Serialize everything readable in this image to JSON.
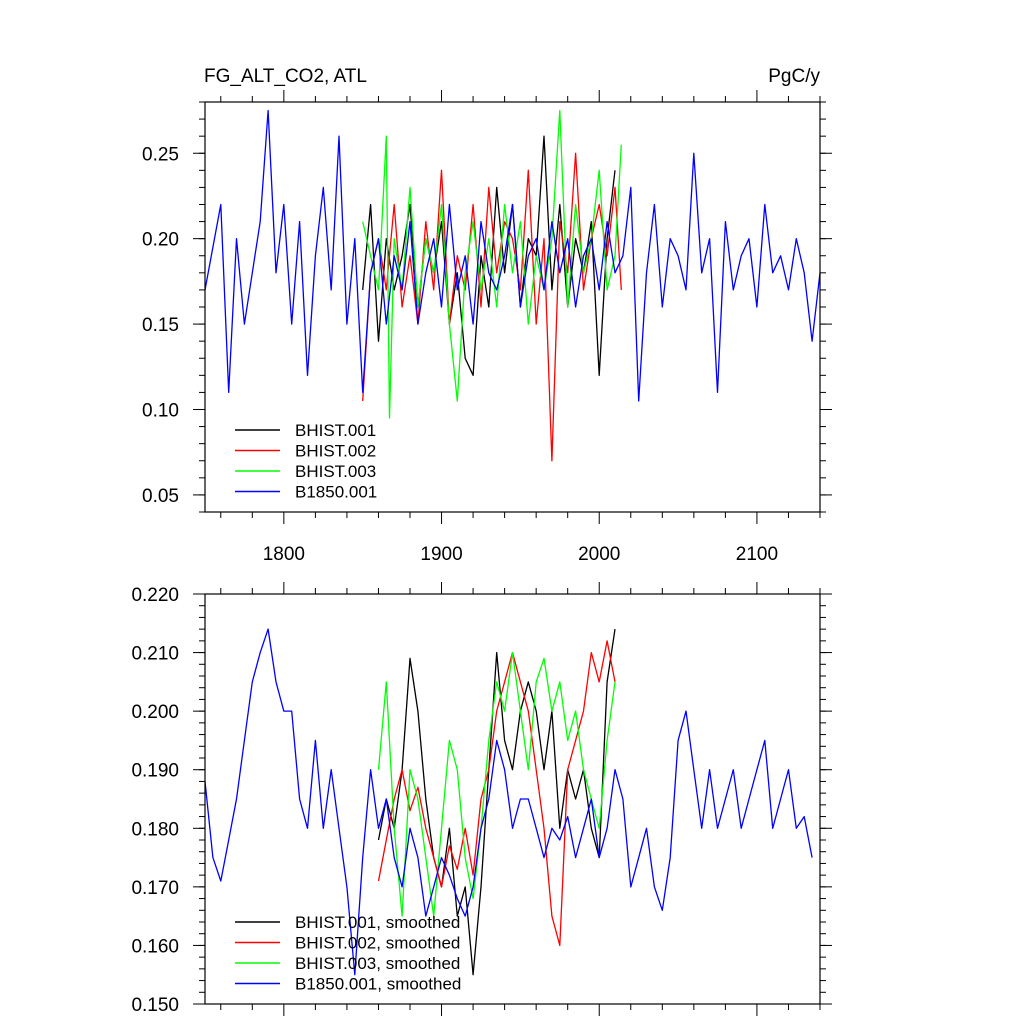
{
  "colors": {
    "bhist001": "#000000",
    "bhist002": "#ff0000",
    "bhist003": "#00ff00",
    "b1850": "#0000ff"
  },
  "chart_data": [
    {
      "type": "line",
      "title": "FG_ALT_CO2, ATL",
      "units": "PgC/y",
      "xlim": [
        1750,
        2140
      ],
      "ylim": [
        0.04,
        0.28
      ],
      "x_ticks": [
        1800,
        1900,
        2000,
        2100
      ],
      "x_tick_labels": [
        "1800",
        "1900",
        "2000",
        "2100"
      ],
      "y_ticks": [
        0.05,
        0.1,
        0.15,
        0.2,
        0.25
      ],
      "y_tick_labels": [
        "0.05",
        "0.10",
        "0.15",
        "0.20",
        "0.25"
      ],
      "legend_position": "bottom-left",
      "series": [
        {
          "name": "BHIST.001",
          "color": "#000000",
          "x": [
            1850,
            1855,
            1860,
            1865,
            1870,
            1875,
            1880,
            1885,
            1890,
            1895,
            1900,
            1905,
            1910,
            1915,
            1920,
            1925,
            1930,
            1935,
            1940,
            1945,
            1950,
            1955,
            1960,
            1965,
            1970,
            1975,
            1980,
            1985,
            1990,
            1995,
            2000,
            2005,
            2010
          ],
          "y": [
            0.17,
            0.22,
            0.14,
            0.2,
            0.17,
            0.19,
            0.22,
            0.16,
            0.2,
            0.18,
            0.21,
            0.15,
            0.18,
            0.13,
            0.12,
            0.19,
            0.16,
            0.23,
            0.18,
            0.22,
            0.16,
            0.2,
            0.19,
            0.26,
            0.17,
            0.22,
            0.16,
            0.2,
            0.18,
            0.21,
            0.12,
            0.2,
            0.24
          ]
        },
        {
          "name": "BHIST.002",
          "color": "#ff0000",
          "x": [
            1850,
            1855,
            1860,
            1865,
            1870,
            1875,
            1880,
            1885,
            1890,
            1895,
            1900,
            1905,
            1910,
            1915,
            1920,
            1925,
            1930,
            1935,
            1940,
            1945,
            1950,
            1955,
            1960,
            1965,
            1970,
            1975,
            1980,
            1985,
            1990,
            1995,
            2000,
            2005,
            2010,
            2014
          ],
          "y": [
            0.105,
            0.18,
            0.2,
            0.17,
            0.22,
            0.16,
            0.19,
            0.15,
            0.21,
            0.17,
            0.24,
            0.15,
            0.19,
            0.17,
            0.22,
            0.16,
            0.23,
            0.18,
            0.21,
            0.2,
            0.17,
            0.24,
            0.15,
            0.2,
            0.07,
            0.21,
            0.18,
            0.25,
            0.17,
            0.2,
            0.22,
            0.19,
            0.23,
            0.17
          ]
        },
        {
          "name": "BHIST.003",
          "color": "#00ff00",
          "x": [
            1850,
            1855,
            1860,
            1865,
            1867,
            1870,
            1875,
            1880,
            1885,
            1890,
            1895,
            1900,
            1905,
            1910,
            1915,
            1920,
            1925,
            1930,
            1935,
            1940,
            1945,
            1950,
            1955,
            1960,
            1965,
            1970,
            1975,
            1980,
            1985,
            1990,
            1995,
            2000,
            2005,
            2010,
            2014
          ],
          "y": [
            0.21,
            0.19,
            0.17,
            0.26,
            0.095,
            0.2,
            0.17,
            0.23,
            0.16,
            0.2,
            0.18,
            0.22,
            0.15,
            0.105,
            0.18,
            0.21,
            0.17,
            0.2,
            0.16,
            0.22,
            0.18,
            0.21,
            0.15,
            0.19,
            0.17,
            0.2,
            0.275,
            0.16,
            0.22,
            0.18,
            0.2,
            0.24,
            0.17,
            0.19,
            0.255
          ]
        },
        {
          "name": "B1850.001",
          "color": "#0000ff",
          "x": [
            1750,
            1760,
            1765,
            1770,
            1775,
            1780,
            1785,
            1790,
            1795,
            1800,
            1805,
            1810,
            1815,
            1820,
            1825,
            1830,
            1835,
            1840,
            1845,
            1850,
            1855,
            1860,
            1865,
            1870,
            1875,
            1880,
            1885,
            1890,
            1895,
            1900,
            1905,
            1910,
            1915,
            1920,
            1925,
            1930,
            1935,
            1940,
            1945,
            1950,
            1955,
            1960,
            1965,
            1970,
            1975,
            1980,
            1985,
            1990,
            1995,
            2000,
            2005,
            2010,
            2015,
            2020,
            2025,
            2030,
            2035,
            2040,
            2045,
            2050,
            2055,
            2060,
            2065,
            2070,
            2075,
            2080,
            2085,
            2090,
            2095,
            2100,
            2105,
            2110,
            2115,
            2120,
            2125,
            2130,
            2135,
            2140
          ],
          "y": [
            0.17,
            0.22,
            0.11,
            0.2,
            0.15,
            0.18,
            0.21,
            0.275,
            0.18,
            0.22,
            0.15,
            0.21,
            0.12,
            0.19,
            0.23,
            0.17,
            0.26,
            0.15,
            0.2,
            0.11,
            0.18,
            0.2,
            0.15,
            0.19,
            0.17,
            0.21,
            0.15,
            0.18,
            0.2,
            0.16,
            0.22,
            0.17,
            0.19,
            0.15,
            0.21,
            0.18,
            0.17,
            0.19,
            0.22,
            0.16,
            0.19,
            0.2,
            0.17,
            0.21,
            0.18,
            0.2,
            0.16,
            0.19,
            0.2,
            0.17,
            0.21,
            0.18,
            0.19,
            0.23,
            0.105,
            0.18,
            0.22,
            0.16,
            0.2,
            0.19,
            0.17,
            0.25,
            0.18,
            0.2,
            0.11,
            0.21,
            0.17,
            0.19,
            0.2,
            0.16,
            0.22,
            0.18,
            0.19,
            0.17,
            0.2,
            0.18,
            0.14,
            0.18
          ]
        }
      ]
    },
    {
      "type": "line",
      "title": "",
      "xlim": [
        1750,
        2140
      ],
      "ylim": [
        0.15,
        0.22
      ],
      "x_ticks": [
        1800,
        1900,
        2000,
        2100
      ],
      "y_ticks": [
        0.15,
        0.16,
        0.17,
        0.18,
        0.19,
        0.2,
        0.21,
        0.22
      ],
      "y_tick_labels": [
        "0.150",
        "0.160",
        "0.170",
        "0.180",
        "0.190",
        "0.200",
        "0.210",
        "0.220"
      ],
      "legend_position": "bottom-left",
      "series": [
        {
          "name": "BHIST.001, smoothed",
          "color": "#000000",
          "x": [
            1860,
            1865,
            1870,
            1875,
            1880,
            1885,
            1890,
            1895,
            1900,
            1905,
            1910,
            1915,
            1920,
            1925,
            1930,
            1935,
            1940,
            1945,
            1950,
            1955,
            1960,
            1965,
            1970,
            1975,
            1980,
            1985,
            1990,
            1995,
            2000,
            2005,
            2010
          ],
          "y": [
            0.178,
            0.185,
            0.18,
            0.19,
            0.209,
            0.2,
            0.185,
            0.175,
            0.17,
            0.18,
            0.165,
            0.17,
            0.155,
            0.17,
            0.19,
            0.21,
            0.195,
            0.19,
            0.2,
            0.205,
            0.2,
            0.19,
            0.2,
            0.18,
            0.19,
            0.185,
            0.19,
            0.18,
            0.175,
            0.205,
            0.214
          ]
        },
        {
          "name": "BHIST.002, smoothed",
          "color": "#ff0000",
          "x": [
            1860,
            1865,
            1870,
            1875,
            1880,
            1885,
            1890,
            1895,
            1900,
            1905,
            1910,
            1915,
            1920,
            1925,
            1930,
            1935,
            1940,
            1945,
            1950,
            1955,
            1960,
            1965,
            1970,
            1975,
            1980,
            1985,
            1990,
            1995,
            2000,
            2005,
            2010
          ],
          "y": [
            0.171,
            0.178,
            0.185,
            0.19,
            0.183,
            0.187,
            0.18,
            0.175,
            0.17,
            0.177,
            0.173,
            0.18,
            0.172,
            0.185,
            0.19,
            0.2,
            0.205,
            0.21,
            0.205,
            0.2,
            0.19,
            0.18,
            0.165,
            0.16,
            0.19,
            0.195,
            0.2,
            0.21,
            0.205,
            0.212,
            0.205
          ]
        },
        {
          "name": "BHIST.003, smoothed",
          "color": "#00ff00",
          "x": [
            1860,
            1865,
            1870,
            1875,
            1880,
            1885,
            1890,
            1895,
            1900,
            1905,
            1910,
            1915,
            1920,
            1925,
            1930,
            1935,
            1940,
            1945,
            1950,
            1955,
            1960,
            1965,
            1970,
            1975,
            1980,
            1985,
            1990,
            1995,
            2000,
            2005,
            2010
          ],
          "y": [
            0.19,
            0.205,
            0.18,
            0.165,
            0.19,
            0.185,
            0.175,
            0.165,
            0.18,
            0.195,
            0.19,
            0.175,
            0.168,
            0.18,
            0.195,
            0.205,
            0.2,
            0.21,
            0.2,
            0.19,
            0.205,
            0.209,
            0.2,
            0.205,
            0.195,
            0.2,
            0.19,
            0.185,
            0.18,
            0.195,
            0.205
          ]
        },
        {
          "name": "B1850.001, smoothed",
          "color": "#0000ff",
          "x": [
            1750,
            1755,
            1760,
            1765,
            1770,
            1775,
            1780,
            1785,
            1790,
            1795,
            1800,
            1805,
            1810,
            1815,
            1820,
            1825,
            1830,
            1835,
            1840,
            1845,
            1850,
            1855,
            1860,
            1865,
            1870,
            1875,
            1880,
            1885,
            1890,
            1895,
            1900,
            1905,
            1910,
            1915,
            1920,
            1925,
            1930,
            1935,
            1940,
            1945,
            1950,
            1955,
            1960,
            1965,
            1970,
            1975,
            1980,
            1985,
            1990,
            1995,
            2000,
            2005,
            2010,
            2015,
            2020,
            2025,
            2030,
            2035,
            2040,
            2045,
            2050,
            2055,
            2060,
            2065,
            2070,
            2075,
            2080,
            2085,
            2090,
            2095,
            2100,
            2105,
            2110,
            2115,
            2120,
            2125,
            2130,
            2135
          ],
          "y": [
            0.188,
            0.175,
            0.171,
            0.178,
            0.185,
            0.195,
            0.205,
            0.21,
            0.214,
            0.205,
            0.2,
            0.2,
            0.185,
            0.18,
            0.195,
            0.18,
            0.19,
            0.18,
            0.17,
            0.155,
            0.175,
            0.19,
            0.18,
            0.185,
            0.175,
            0.17,
            0.18,
            0.175,
            0.165,
            0.17,
            0.175,
            0.172,
            0.168,
            0.165,
            0.17,
            0.18,
            0.185,
            0.195,
            0.19,
            0.18,
            0.185,
            0.185,
            0.18,
            0.175,
            0.18,
            0.178,
            0.182,
            0.175,
            0.18,
            0.185,
            0.175,
            0.18,
            0.19,
            0.185,
            0.17,
            0.175,
            0.18,
            0.17,
            0.166,
            0.175,
            0.195,
            0.2,
            0.19,
            0.18,
            0.19,
            0.18,
            0.185,
            0.19,
            0.18,
            0.185,
            0.19,
            0.195,
            0.18,
            0.185,
            0.19,
            0.18,
            0.182,
            0.175
          ]
        }
      ]
    }
  ]
}
